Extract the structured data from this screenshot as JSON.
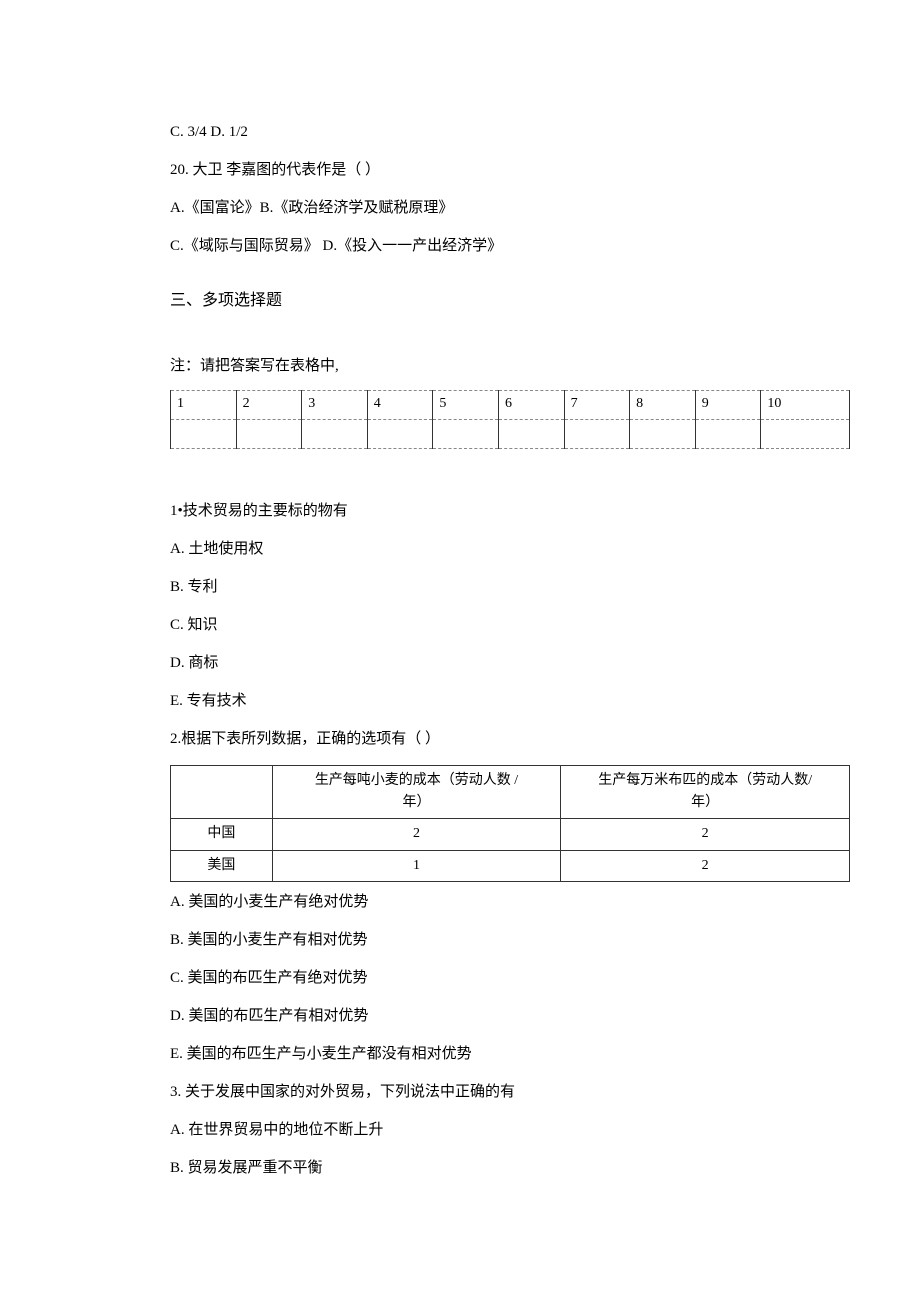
{
  "lines": {
    "l1": "C. 3/4 D. 1/2",
    "l2": "20.  大卫  李嘉图的代表作是（ ）",
    "l3": "A.《国富论》B.《政治经济学及赋税原理》",
    "l4": "C.《域际与国际贸易》    D.《投入一一产出经济学》"
  },
  "section3_title": "三、多项选择题",
  "note": "注：请把答案写在表格中,",
  "answer_table_headers": [
    "1",
    "2",
    "3",
    "4",
    "5",
    "6",
    "7",
    "8",
    "9",
    "10"
  ],
  "q1": {
    "stem": "1•技术贸易的主要标的物有",
    "A": "A.  土地使用权",
    "B": "B.  专利",
    "C": "C.  知识",
    "D": "D.  商标",
    "E": "E.  专有技术"
  },
  "q2": {
    "stem": "2.根据下表所列数据，正确的选项有（  ）",
    "table": {
      "header_col1_line1": "生产每吨小麦的成本（劳动人数  /",
      "header_col1_line2": "年）",
      "header_col2_line1": "生产每万米布匹的成本（劳动人数/",
      "header_col2_line2": "年）",
      "rows": [
        {
          "label": "中国",
          "c1": "2",
          "c2": "2"
        },
        {
          "label": "美国",
          "c1": "1",
          "c2": "2"
        }
      ]
    },
    "A": "A.  美国的小麦生产有绝对优势",
    "B": "B.  美国的小麦生产有相对优势",
    "C": "C.  美国的布匹生产有绝对优势",
    "D": "D.  美国的布匹生产有相对优势",
    "E": "E.  美国的布匹生产与小麦生产都没有相对优势"
  },
  "q3": {
    "stem": "3.    关于发展中国家的对外贸易，下列说法中正确的有",
    "A": "A.  在世界贸易中的地位不断上升",
    "B": "B.  贸易发展严重不平衡"
  }
}
